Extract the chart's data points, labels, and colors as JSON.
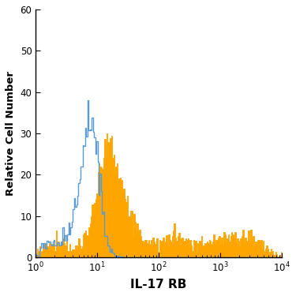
{
  "xlabel": "IL-17 RB",
  "ylabel": "Relative Cell Number",
  "ylim": [
    0,
    60
  ],
  "yticks": [
    0,
    10,
    20,
    30,
    40,
    50,
    60
  ],
  "blue_color": "#5b9bd5",
  "orange_color": "#FFA500",
  "orange_edge_color": "#c8841a",
  "background_color": "#ffffff",
  "figsize": [
    3.75,
    3.75
  ],
  "dpi": 100,
  "blue_peak": 38,
  "orange_peak": 30,
  "blue_peak_log": 0.88,
  "orange_peak_log": 1.18
}
